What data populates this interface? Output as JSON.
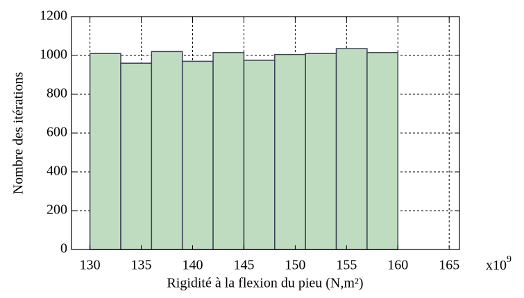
{
  "chart_data": {
    "type": "histogram",
    "xlabel": "Rigidité à la flexion du pieu (N,m²)",
    "ylabel": "Nombre des itérations",
    "x_multiplier": "x10",
    "x_multiplier_exponent": "9",
    "bins": [
      130,
      133,
      136,
      139,
      142,
      145,
      148,
      151,
      154,
      157,
      160
    ],
    "counts": [
      1010,
      960,
      1020,
      970,
      1015,
      975,
      1005,
      1010,
      1035,
      1015
    ],
    "color": "#c0dcc0",
    "edgecolor": "#3a3f55",
    "xlim": [
      128.2,
      166
    ],
    "xticks": [
      130,
      135,
      140,
      145,
      150,
      155,
      160,
      165
    ],
    "ylim": [
      0,
      1200
    ],
    "yticks": [
      0,
      200,
      400,
      600,
      800,
      1000,
      1200
    ],
    "grid": true
  }
}
